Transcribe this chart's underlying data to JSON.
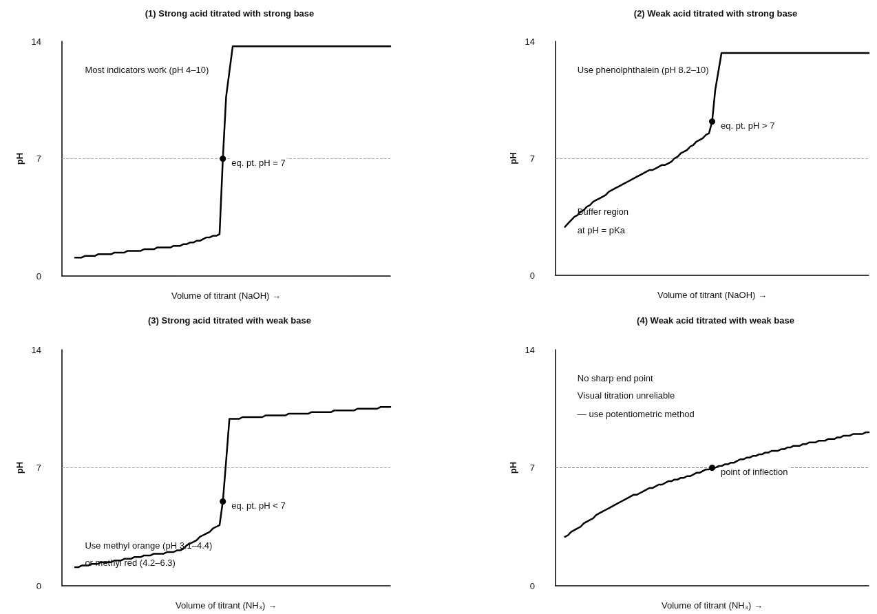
{
  "chart_data": [
    {
      "type": "line",
      "title": "(1) Strong acid titrated with strong base",
      "xlabel": "Volume of titrant (NaOH) →",
      "ylabel": "pH",
      "ylim": [
        0,
        14
      ],
      "yticks": [
        0,
        7,
        14
      ],
      "tick_labels": "y",
      "grid": false,
      "categories": [
        null,
        null,
        null,
        null,
        null,
        null,
        null,
        null,
        null,
        null,
        null,
        null,
        null,
        null,
        null,
        null,
        null,
        null,
        null,
        null,
        null,
        null,
        null,
        null,
        null,
        null,
        null,
        null,
        null,
        null,
        null,
        null,
        null,
        null,
        null,
        null,
        null,
        null,
        null,
        null,
        null,
        null,
        null,
        null,
        null,
        null,
        null,
        null,
        null,
        null,
        null,
        null,
        null,
        null,
        null,
        null,
        null,
        null,
        null,
        null,
        null,
        null,
        null,
        null,
        null,
        null,
        null,
        null,
        null,
        null,
        null,
        null,
        null,
        null,
        null,
        null,
        null,
        null,
        null,
        null,
        null,
        null,
        null,
        null,
        null,
        null,
        null,
        null,
        null,
        null,
        null,
        null,
        null,
        null,
        null,
        null,
        null,
        null,
        null,
        null,
        null
      ],
      "series": [
        {
          "color": "#000000",
          "line_style": "solid",
          "values": [
            null,
            null,
            null,
            null,
            1.1,
            1.1,
            1.1,
            1.2,
            1.2,
            1.2,
            1.2,
            1.3,
            1.3,
            1.3,
            1.3,
            1.3,
            1.4,
            1.4,
            1.4,
            1.4,
            1.5,
            1.5,
            1.5,
            1.5,
            1.5,
            1.6,
            1.6,
            1.6,
            1.6,
            1.7,
            1.7,
            1.7,
            1.7,
            1.7,
            1.8,
            1.8,
            1.8,
            1.9,
            1.9,
            2.0,
            2.0,
            2.1,
            2.1,
            2.2,
            2.3,
            2.3,
            2.4,
            2.4,
            2.5,
            7.0,
            10.7,
            12.2,
            13.7,
            13.7,
            13.7,
            13.7,
            13.7,
            13.7,
            13.7,
            13.7,
            13.7,
            13.7,
            13.7,
            13.7,
            13.7,
            13.7,
            13.7,
            13.7,
            13.7,
            13.7,
            13.7,
            13.7,
            13.7,
            13.7,
            13.7,
            13.7,
            13.7,
            13.7,
            13.7,
            13.7,
            13.7,
            13.7,
            13.7,
            13.7,
            13.7,
            13.7,
            13.7,
            13.7,
            13.7,
            13.7,
            13.7,
            13.7,
            13.7,
            13.7,
            13.7,
            13.7,
            13.7,
            13.7,
            13.7,
            13.7,
            13.7
          ],
          "value_labels": [
            null,
            null,
            null,
            null,
            null,
            null,
            null,
            null,
            null,
            null,
            null,
            null,
            null,
            null,
            null,
            null,
            null,
            null,
            null,
            null,
            null,
            null,
            null,
            null,
            null,
            null,
            null,
            null,
            null,
            null,
            null,
            null,
            null,
            null,
            null,
            null,
            null,
            null,
            null,
            null,
            null,
            null,
            null,
            null,
            null,
            null,
            null,
            null,
            null,
            "eq. pt. pH = 7",
            null,
            null,
            null,
            null,
            null,
            null,
            null,
            null,
            null,
            null,
            null,
            null,
            null,
            null,
            null,
            null,
            null,
            null,
            null,
            null,
            null,
            null,
            null,
            null,
            null,
            null,
            null,
            null,
            null,
            null,
            null,
            null,
            null,
            null,
            null,
            null,
            null,
            null,
            null,
            null,
            null,
            null,
            null,
            null,
            null,
            null,
            null,
            null,
            null,
            null,
            null
          ]
        }
      ],
      "ref_lines": [
        {
          "axis": "y",
          "value": 7,
          "color": "#aaaaaa",
          "line_style": "dashed"
        }
      ],
      "annotations": [
        "Most indicators work (pH 4–10)"
      ]
    },
    {
      "type": "line",
      "title": "(2) Weak acid titrated with strong base",
      "xlabel": "Volume of titrant (NaOH) →",
      "ylabel": "pH",
      "ylim": [
        0,
        14
      ],
      "yticks": [
        0,
        7,
        14
      ],
      "tick_labels": "y",
      "grid": false,
      "categories": [
        null,
        null,
        null,
        null,
        null,
        null,
        null,
        null,
        null,
        null,
        null,
        null,
        null,
        null,
        null,
        null,
        null,
        null,
        null,
        null,
        null,
        null,
        null,
        null,
        null,
        null,
        null,
        null,
        null,
        null,
        null,
        null,
        null,
        null,
        null,
        null,
        null,
        null,
        null,
        null,
        null,
        null,
        null,
        null,
        null,
        null,
        null,
        null,
        null,
        null,
        null,
        null,
        null,
        null,
        null,
        null,
        null,
        null,
        null,
        null,
        null,
        null,
        null,
        null,
        null,
        null,
        null,
        null,
        null,
        null,
        null,
        null,
        null,
        null,
        null,
        null,
        null,
        null,
        null,
        null,
        null,
        null,
        null,
        null,
        null,
        null,
        null,
        null,
        null,
        null,
        null,
        null,
        null,
        null,
        null,
        null,
        null,
        null,
        null,
        null,
        null
      ],
      "series": [
        {
          "color": "#000000",
          "line_style": "solid",
          "values": [
            null,
            null,
            null,
            2.9,
            3.1,
            3.3,
            3.5,
            3.6,
            3.8,
            3.9,
            4.1,
            4.2,
            4.4,
            4.5,
            4.6,
            4.7,
            4.8,
            5.0,
            5.1,
            5.2,
            5.3,
            5.4,
            5.5,
            5.6,
            5.7,
            5.8,
            5.9,
            6.0,
            6.1,
            6.2,
            6.3,
            6.3,
            6.4,
            6.5,
            6.6,
            6.6,
            6.7,
            6.8,
            7.0,
            7.1,
            7.3,
            7.4,
            7.5,
            7.7,
            7.8,
            8.0,
            8.1,
            8.2,
            8.4,
            8.5,
            9.2,
            11.1,
            12.2,
            13.3,
            13.3,
            13.3,
            13.3,
            13.3,
            13.3,
            13.3,
            13.3,
            13.3,
            13.3,
            13.3,
            13.3,
            13.3,
            13.3,
            13.3,
            13.3,
            13.3,
            13.3,
            13.3,
            13.3,
            13.3,
            13.3,
            13.3,
            13.3,
            13.3,
            13.3,
            13.3,
            13.3,
            13.3,
            13.3,
            13.3,
            13.3,
            13.3,
            13.3,
            13.3,
            13.3,
            13.3,
            13.3,
            13.3,
            13.3,
            13.3,
            13.3,
            13.3,
            13.3,
            13.3,
            13.3,
            13.3,
            13.3
          ],
          "value_labels": [
            null,
            null,
            null,
            null,
            null,
            null,
            null,
            null,
            null,
            null,
            null,
            null,
            null,
            null,
            null,
            null,
            null,
            null,
            null,
            null,
            null,
            null,
            null,
            null,
            null,
            null,
            null,
            null,
            null,
            null,
            null,
            null,
            null,
            null,
            null,
            null,
            null,
            null,
            null,
            null,
            null,
            null,
            null,
            null,
            null,
            null,
            null,
            null,
            null,
            null,
            "eq. pt. pH > 7",
            null,
            null,
            null,
            null,
            null,
            null,
            null,
            null,
            null,
            null,
            null,
            null,
            null,
            null,
            null,
            null,
            null,
            null,
            null,
            null,
            null,
            null,
            null,
            null,
            null,
            null,
            null,
            null,
            null,
            null,
            null,
            null,
            null,
            null,
            null,
            null,
            null,
            null,
            null,
            null,
            null,
            null,
            null,
            null,
            null,
            null,
            null,
            null,
            null,
            null
          ]
        }
      ],
      "ref_lines": [
        {
          "axis": "y",
          "value": 7,
          "color": "#aaaaaa",
          "line_style": "dashed"
        }
      ],
      "annotations": [
        "Use phenolphthalein (pH 8.2–10)",
        "Buffer region",
        "at pH = pKa"
      ]
    },
    {
      "type": "line",
      "title": "(3) Strong acid titrated with weak base",
      "xlabel": "Volume of titrant (NH₃) →",
      "ylabel": "pH",
      "ylim": [
        0,
        14
      ],
      "yticks": [
        0,
        7,
        14
      ],
      "tick_labels": "y",
      "grid": false,
      "categories": [
        null,
        null,
        null,
        null,
        null,
        null,
        null,
        null,
        null,
        null,
        null,
        null,
        null,
        null,
        null,
        null,
        null,
        null,
        null,
        null,
        null,
        null,
        null,
        null,
        null,
        null,
        null,
        null,
        null,
        null,
        null,
        null,
        null,
        null,
        null,
        null,
        null,
        null,
        null,
        null,
        null,
        null,
        null,
        null,
        null,
        null,
        null,
        null,
        null,
        null,
        null,
        null,
        null,
        null,
        null,
        null,
        null,
        null,
        null,
        null,
        null,
        null,
        null,
        null,
        null,
        null,
        null,
        null,
        null,
        null,
        null,
        null,
        null,
        null,
        null,
        null,
        null,
        null,
        null,
        null,
        null,
        null,
        null,
        null,
        null,
        null,
        null,
        null,
        null,
        null,
        null,
        null,
        null,
        null,
        null,
        null,
        null,
        null,
        null,
        null,
        null
      ],
      "series": [
        {
          "color": "#000000",
          "line_style": "solid",
          "values": [
            null,
            null,
            null,
            null,
            1.1,
            1.1,
            1.2,
            1.2,
            1.2,
            1.3,
            1.3,
            1.3,
            1.4,
            1.4,
            1.4,
            1.4,
            1.5,
            1.5,
            1.5,
            1.6,
            1.6,
            1.6,
            1.7,
            1.7,
            1.7,
            1.8,
            1.8,
            1.8,
            1.9,
            1.9,
            1.9,
            1.9,
            2.0,
            2.0,
            2.0,
            2.1,
            2.1,
            2.2,
            2.4,
            2.5,
            2.6,
            2.7,
            2.9,
            3.0,
            3.1,
            3.2,
            3.4,
            3.5,
            3.6,
            5.0,
            7.4,
            9.9,
            9.9,
            9.9,
            9.9,
            10.0,
            10.0,
            10.0,
            10.0,
            10.0,
            10.0,
            10.0,
            10.1,
            10.1,
            10.1,
            10.1,
            10.1,
            10.1,
            10.1,
            10.2,
            10.2,
            10.2,
            10.2,
            10.2,
            10.2,
            10.2,
            10.3,
            10.3,
            10.3,
            10.3,
            10.3,
            10.3,
            10.3,
            10.4,
            10.4,
            10.4,
            10.4,
            10.4,
            10.4,
            10.4,
            10.5,
            10.5,
            10.5,
            10.5,
            10.5,
            10.5,
            10.5,
            10.6,
            10.6,
            10.6,
            10.6
          ],
          "value_labels": [
            null,
            null,
            null,
            null,
            null,
            null,
            null,
            null,
            null,
            null,
            null,
            null,
            null,
            null,
            null,
            null,
            null,
            null,
            null,
            null,
            null,
            null,
            null,
            null,
            null,
            null,
            null,
            null,
            null,
            null,
            null,
            null,
            null,
            null,
            null,
            null,
            null,
            null,
            null,
            null,
            null,
            null,
            null,
            null,
            null,
            null,
            null,
            null,
            null,
            "eq. pt. pH < 7",
            null,
            null,
            null,
            null,
            null,
            null,
            null,
            null,
            null,
            null,
            null,
            null,
            null,
            null,
            null,
            null,
            null,
            null,
            null,
            null,
            null,
            null,
            null,
            null,
            null,
            null,
            null,
            null,
            null,
            null,
            null,
            null,
            null,
            null,
            null,
            null,
            null,
            null,
            null,
            null,
            null,
            null,
            null,
            null,
            null,
            null,
            null,
            null,
            null,
            null,
            null
          ]
        }
      ],
      "ref_lines": [
        {
          "axis": "y",
          "value": 7,
          "color": "#aaaaaa",
          "line_style": "dashed"
        }
      ],
      "annotations": [
        "Use methyl orange (pH 3.1–4.4)",
        "or methyl red (4.2–6.3)"
      ]
    },
    {
      "type": "line",
      "title": "(4) Weak acid titrated with weak base",
      "xlabel": "Volume of titrant (NH₃) →",
      "ylabel": "pH",
      "ylim": [
        0,
        14
      ],
      "yticks": [
        0,
        7,
        14
      ],
      "tick_labels": "y",
      "grid": false,
      "categories": [
        null,
        null,
        null,
        null,
        null,
        null,
        null,
        null,
        null,
        null,
        null,
        null,
        null,
        null,
        null,
        null,
        null,
        null,
        null,
        null,
        null,
        null,
        null,
        null,
        null,
        null,
        null,
        null,
        null,
        null,
        null,
        null,
        null,
        null,
        null,
        null,
        null,
        null,
        null,
        null,
        null,
        null,
        null,
        null,
        null,
        null,
        null,
        null,
        null,
        null,
        null,
        null,
        null,
        null,
        null,
        null,
        null,
        null,
        null,
        null,
        null,
        null,
        null,
        null,
        null,
        null,
        null,
        null,
        null,
        null,
        null,
        null,
        null,
        null,
        null,
        null,
        null,
        null,
        null,
        null,
        null,
        null,
        null,
        null,
        null,
        null,
        null,
        null,
        null,
        null,
        null,
        null,
        null,
        null,
        null,
        null,
        null,
        null,
        null,
        null,
        null
      ],
      "series": [
        {
          "color": "#000000",
          "line_style": "solid",
          "values": [
            null,
            null,
            null,
            2.9,
            3.0,
            3.2,
            3.3,
            3.4,
            3.5,
            3.7,
            3.8,
            3.9,
            4.0,
            4.2,
            4.3,
            4.4,
            4.5,
            4.6,
            4.7,
            4.8,
            4.9,
            5.0,
            5.1,
            5.2,
            5.3,
            5.4,
            5.4,
            5.5,
            5.6,
            5.7,
            5.8,
            5.8,
            5.9,
            6.0,
            6.0,
            6.1,
            6.2,
            6.2,
            6.3,
            6.3,
            6.4,
            6.4,
            6.5,
            6.5,
            6.6,
            6.7,
            6.7,
            6.8,
            6.9,
            6.9,
            7.0,
            7.0,
            7.1,
            7.1,
            7.2,
            7.2,
            7.3,
            7.3,
            7.4,
            7.5,
            7.5,
            7.6,
            7.6,
            7.7,
            7.7,
            7.8,
            7.8,
            7.9,
            7.9,
            8.0,
            8.0,
            8.0,
            8.1,
            8.1,
            8.2,
            8.2,
            8.3,
            8.3,
            8.3,
            8.4,
            8.4,
            8.5,
            8.5,
            8.5,
            8.6,
            8.6,
            8.6,
            8.7,
            8.7,
            8.7,
            8.8,
            8.8,
            8.9,
            8.9,
            8.9,
            9.0,
            9.0,
            9.0,
            9.0,
            9.1,
            9.1
          ],
          "value_labels": [
            null,
            null,
            null,
            null,
            null,
            null,
            null,
            null,
            null,
            null,
            null,
            null,
            null,
            null,
            null,
            null,
            null,
            null,
            null,
            null,
            null,
            null,
            null,
            null,
            null,
            null,
            null,
            null,
            null,
            null,
            null,
            null,
            null,
            null,
            null,
            null,
            null,
            null,
            null,
            null,
            null,
            null,
            null,
            null,
            null,
            null,
            null,
            null,
            null,
            null,
            "point of inflection",
            null,
            null,
            null,
            null,
            null,
            null,
            null,
            null,
            null,
            null,
            null,
            null,
            null,
            null,
            null,
            null,
            null,
            null,
            null,
            null,
            null,
            null,
            null,
            null,
            null,
            null,
            null,
            null,
            null,
            null,
            null,
            null,
            null,
            null,
            null,
            null,
            null,
            null,
            null,
            null,
            null,
            null,
            null,
            null,
            null,
            null,
            null,
            null,
            null,
            null
          ]
        }
      ],
      "ref_lines": [
        {
          "axis": "y",
          "value": 7,
          "color": "#888888",
          "line_style": "dashed"
        }
      ],
      "annotations": [
        "No sharp end point",
        "Visual titration unreliable",
        "— use potentiometric method"
      ]
    }
  ]
}
